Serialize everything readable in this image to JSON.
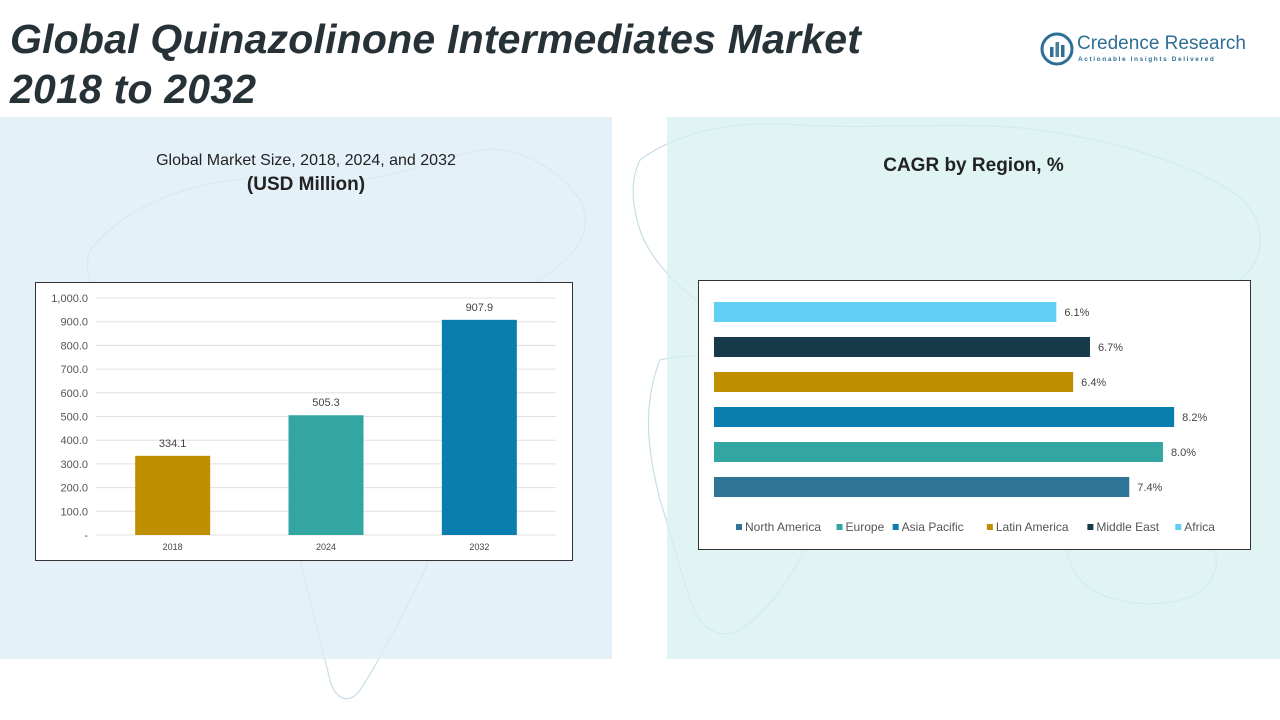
{
  "title": {
    "line1": "Global Quinazolinone Intermediates Market",
    "line2": "2018 to 2032"
  },
  "logo": {
    "name": "Credence Research",
    "tagline": "Actionable Insights Delivered",
    "icon": "bar-chart-circle-icon"
  },
  "left_panel": {
    "heading": "Global Market Size, 2018, 2024, and 2032",
    "subheading": "(USD Million)"
  },
  "right_panel": {
    "heading": "CAGR by Region, %"
  },
  "chart_data": [
    {
      "type": "bar",
      "categories": [
        "2018",
        "2024",
        "2032"
      ],
      "values": [
        334.1,
        505.3,
        907.9
      ],
      "value_labels": [
        "334.1",
        "505.3",
        "907.9"
      ],
      "colors": [
        "#bf8f00",
        "#33a6a2",
        "#0a7eaf"
      ],
      "ylim": [
        0,
        1000
      ],
      "yticks": [
        "-",
        "100.0",
        "200.0",
        "300.0",
        "400.0",
        "500.0",
        "600.0",
        "700.0",
        "800.0",
        "900.0",
        "1,000.0"
      ],
      "grid": true
    },
    {
      "type": "bar",
      "orientation": "horizontal",
      "categories": [
        "Africa",
        "Middle East",
        "Latin America",
        "Asia Pacific",
        "Europe",
        "North America"
      ],
      "values": [
        6.1,
        6.7,
        6.4,
        8.2,
        8.0,
        7.4
      ],
      "value_labels": [
        "6.1%",
        "6.7%",
        "6.4%",
        "8.2%",
        "8.0%",
        "7.4%"
      ],
      "colors": [
        "#61cff5",
        "#173a4a",
        "#bf8f00",
        "#0a7eaf",
        "#33a6a2",
        "#2f7598"
      ],
      "xlim": [
        0,
        8.5
      ],
      "legend": [
        "North America",
        "Europe",
        "Asia Pacific",
        "Latin America",
        "Middle East",
        "Africa"
      ],
      "legend_colors": [
        "#2f7598",
        "#33a6a2",
        "#0a7eaf",
        "#bf8f00",
        "#173a4a",
        "#61cff5"
      ],
      "legend_position": "bottom"
    }
  ]
}
